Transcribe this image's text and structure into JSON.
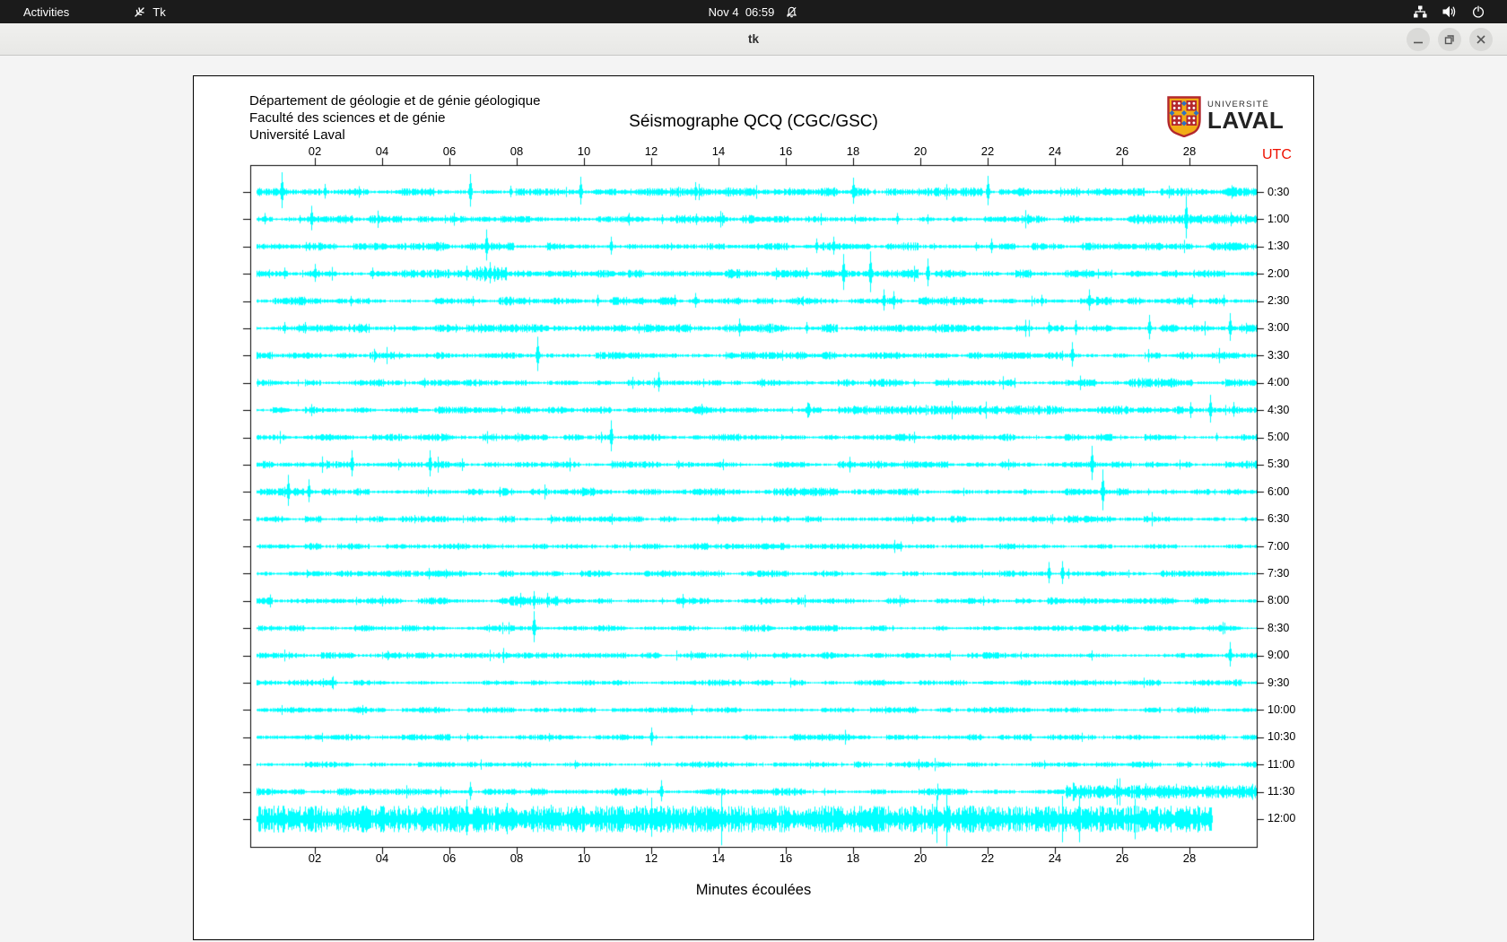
{
  "top_bar": {
    "activities": "Activities",
    "app_name": "Tk",
    "clock": "Nov 4  06:59",
    "icons": [
      "tk-feather-icon",
      "notifications-disabled-icon",
      "network-wired-icon",
      "volume-icon",
      "power-icon"
    ]
  },
  "window": {
    "title": "tk",
    "controls": [
      "minimize",
      "restore",
      "close"
    ]
  },
  "page": {
    "header_lines": [
      "Département de géologie et de génie géologique",
      "Faculté des sciences et de génie",
      "Université Laval"
    ],
    "title": "Séismographe QCQ (CGC/GSC)",
    "logo": {
      "line1": "UNIVERSITÉ",
      "line2": "LAVAL",
      "colors": {
        "gold": "#f2ac15",
        "red": "#b3282d",
        "blue": "#2f6fc1"
      }
    },
    "utc_label": "UTC",
    "utc_color": "#ee1100",
    "xlabel": "Minutes écoulées",
    "seismogram": {
      "type": "line",
      "trace_color": "#00ffff",
      "x_unit": "minutes",
      "x_range": [
        0,
        30
      ],
      "x_ticks": [
        "02",
        "04",
        "06",
        "08",
        "10",
        "12",
        "14",
        "16",
        "18",
        "20",
        "22",
        "24",
        "26",
        "28"
      ],
      "rows": [
        {
          "label": "0:30",
          "base": 2.4,
          "spikes": [
            [
              1.0,
              22
            ],
            [
              2.3,
              9
            ],
            [
              6.6,
              20
            ],
            [
              7.8,
              7
            ],
            [
              9.9,
              17
            ],
            [
              13.3,
              11
            ],
            [
              16.1,
              5
            ],
            [
              18.0,
              16
            ],
            [
              22.0,
              18
            ],
            [
              25.5,
              5
            ],
            [
              29.3,
              6
            ]
          ]
        },
        {
          "label": "1:00",
          "base": 2.2,
          "spikes": [
            [
              0.5,
              7
            ],
            [
              1.9,
              15
            ],
            [
              11.3,
              5
            ],
            [
              19.3,
              7
            ],
            [
              27.9,
              26
            ]
          ],
          "segs": [
            [
              26.3,
              30,
              4.5
            ]
          ]
        },
        {
          "label": "1:30",
          "base": 2.2,
          "spikes": [
            [
              7.1,
              19
            ],
            [
              10.8,
              11
            ],
            [
              16.9,
              9
            ],
            [
              17.4,
              11
            ],
            [
              22.1,
              9
            ],
            [
              25.9,
              5
            ]
          ]
        },
        {
          "label": "2:00",
          "base": 2.4,
          "spikes": [
            [
              1.1,
              7
            ],
            [
              2.0,
              11
            ],
            [
              3.7,
              7
            ],
            [
              6.5,
              9
            ],
            [
              7.2,
              13
            ],
            [
              16.6,
              7
            ],
            [
              17.7,
              22
            ],
            [
              18.5,
              25
            ],
            [
              20.2,
              17
            ]
          ],
          "segs": [
            [
              6.7,
              7.7,
              7
            ]
          ]
        },
        {
          "label": "2:30",
          "base": 2.2,
          "spikes": [
            [
              10.4,
              7
            ],
            [
              12.7,
              7
            ],
            [
              13.3,
              9
            ],
            [
              18.9,
              13
            ],
            [
              19.2,
              11
            ],
            [
              23.6,
              7
            ],
            [
              25.0,
              13
            ],
            [
              29.0,
              7
            ]
          ]
        },
        {
          "label": "3:00",
          "base": 2.4,
          "spikes": [
            [
              1.1,
              7
            ],
            [
              1.7,
              7
            ],
            [
              3.0,
              5
            ],
            [
              14.6,
              11
            ],
            [
              16.6,
              7
            ],
            [
              23.8,
              7
            ],
            [
              24.6,
              9
            ],
            [
              26.8,
              15
            ],
            [
              29.2,
              17
            ]
          ]
        },
        {
          "label": "3:30",
          "base": 2.0,
          "spikes": [
            [
              8.6,
              21
            ],
            [
              24.5,
              15
            ]
          ]
        },
        {
          "label": "4:00",
          "base": 2.0,
          "spikes": [
            [
              12.2,
              12
            ]
          ],
          "segs": [
            [
              26.2,
              27.6,
              4.5
            ]
          ]
        },
        {
          "label": "4:30",
          "base": 2.2,
          "spikes": [
            [
              13.5,
              7
            ],
            [
              16.7,
              7
            ],
            [
              28.6,
              17
            ],
            [
              29.3,
              9
            ]
          ],
          "segs": [
            [
              18.0,
              24.0,
              4.2
            ]
          ]
        },
        {
          "label": "5:00",
          "base": 2.0,
          "spikes": [
            [
              10.8,
              19
            ],
            [
              28.8,
              5
            ]
          ]
        },
        {
          "label": "5:30",
          "base": 2.0,
          "spikes": [
            [
              3.1,
              16
            ],
            [
              5.4,
              16
            ],
            [
              25.1,
              21
            ]
          ]
        },
        {
          "label": "6:00",
          "base": 2.2,
          "spikes": [
            [
              1.2,
              19
            ],
            [
              1.8,
              14
            ],
            [
              25.4,
              25
            ]
          ]
        },
        {
          "label": "6:30",
          "base": 1.9,
          "spikes": [
            [
              14.0,
              4
            ]
          ]
        },
        {
          "label": "7:00",
          "base": 1.8,
          "spikes": []
        },
        {
          "label": "7:30",
          "base": 1.8,
          "spikes": [
            [
              23.8,
              13
            ],
            [
              24.2,
              14
            ]
          ]
        },
        {
          "label": "8:00",
          "base": 1.9,
          "spikes": [
            [
              8.1,
              9
            ],
            [
              8.5,
              11
            ],
            [
              8.9,
              9
            ]
          ],
          "segs": [
            [
              7.8,
              9.2,
              4.5
            ]
          ]
        },
        {
          "label": "8:30",
          "base": 1.8,
          "spikes": [
            [
              8.5,
              19
            ]
          ]
        },
        {
          "label": "9:00",
          "base": 1.8,
          "spikes": [
            [
              29.2,
              15
            ]
          ]
        },
        {
          "label": "9:30",
          "base": 1.7,
          "spikes": []
        },
        {
          "label": "10:00",
          "base": 1.7,
          "spikes": []
        },
        {
          "label": "10:30",
          "base": 1.8,
          "spikes": [
            [
              12.0,
              11
            ]
          ]
        },
        {
          "label": "11:00",
          "base": 1.7,
          "spikes": []
        },
        {
          "label": "11:30",
          "base": 2.0,
          "spikes": [
            [
              6.6,
              11
            ],
            [
              12.3,
              13
            ],
            [
              27.6,
              9
            ]
          ],
          "segs": [
            [
              24.3,
              30,
              6
            ]
          ]
        },
        {
          "label": "12:00",
          "base": 2.2,
          "end": 28.7,
          "spikes": [
            [
              4.0,
              14
            ],
            [
              6.5,
              22
            ],
            [
              7.7,
              18
            ],
            [
              9.0,
              16
            ],
            [
              12.0,
              24
            ],
            [
              25.6,
              13
            ]
          ],
          "segs": [
            [
              0.3,
              28.7,
              12
            ]
          ]
        }
      ]
    }
  }
}
